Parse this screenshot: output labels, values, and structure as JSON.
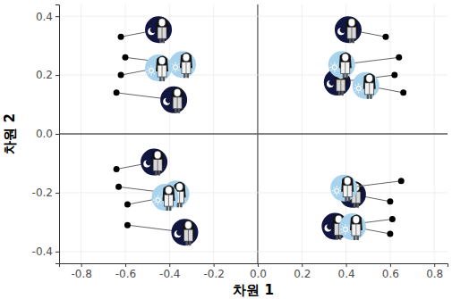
{
  "chart_data": {
    "type": "scatter",
    "x_label": "차원 1",
    "y_label": "차원 2",
    "xlim": [
      -0.9,
      0.86
    ],
    "ylim": [
      -0.44,
      0.44
    ],
    "xticks": [
      -0.8,
      -0.6,
      -0.4,
      -0.2,
      {
        "value": 0,
        "label": "0.0"
      },
      0.2,
      0.4,
      0.6,
      0.8
    ],
    "yticks": [
      -0.4,
      -0.2,
      {
        "value": 0,
        "label": "0.0"
      },
      0.2,
      0.4
    ],
    "grid": true,
    "series": [
      {
        "color": "#10163f",
        "marker": "moon",
        "x": [
          -0.62,
          -0.64,
          0.58,
          0.62,
          -0.64,
          -0.59,
          0.6,
          0.61
        ],
        "values": [
          0.33,
          0.14,
          0.33,
          0.2,
          -0.12,
          -0.31,
          -0.23,
          -0.29
        ]
      },
      {
        "color": "#a9d3ec",
        "marker": "sun",
        "x": [
          -0.6,
          -0.62,
          0.64,
          0.66,
          -0.63,
          -0.59,
          0.65,
          0.6
        ],
        "values": [
          0.26,
          0.2,
          0.26,
          0.14,
          -0.18,
          -0.24,
          -0.16,
          -0.34
        ]
      }
    ]
  }
}
